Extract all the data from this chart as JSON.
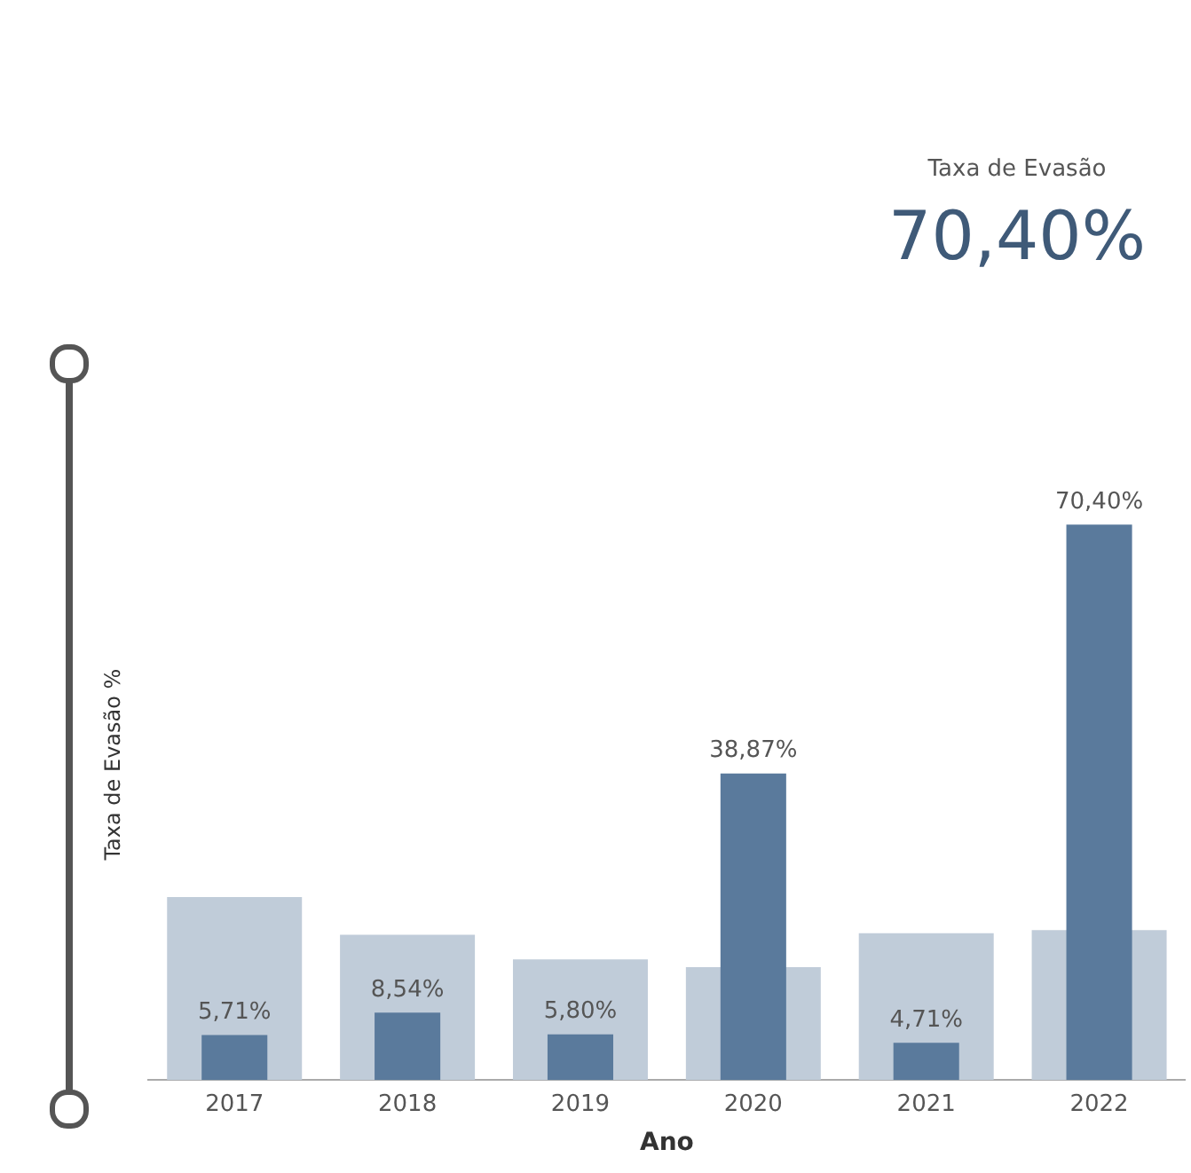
{
  "chart_data": {
    "type": "bar",
    "xlabel": "Ano",
    "ylabel": "Taxa de Evasão %",
    "categories": [
      "2017",
      "2018",
      "2019",
      "2020",
      "2021",
      "2022"
    ],
    "series": [
      {
        "color": "#c0ccd9",
        "values": [
          23.2,
          18.4,
          15.3,
          14.3,
          18.6,
          19.0
        ]
      },
      {
        "color": "#5a7a9c",
        "values": [
          5.71,
          8.54,
          5.8,
          38.87,
          4.71,
          70.4
        ],
        "value_labels": [
          "5,71%",
          "8,54%",
          "5,80%",
          "38,87%",
          "4,71%",
          "70,40%"
        ]
      }
    ],
    "annotations": [
      "Taxa de Evasão",
      "70,40%"
    ],
    "grid": false,
    "legend": false
  }
}
